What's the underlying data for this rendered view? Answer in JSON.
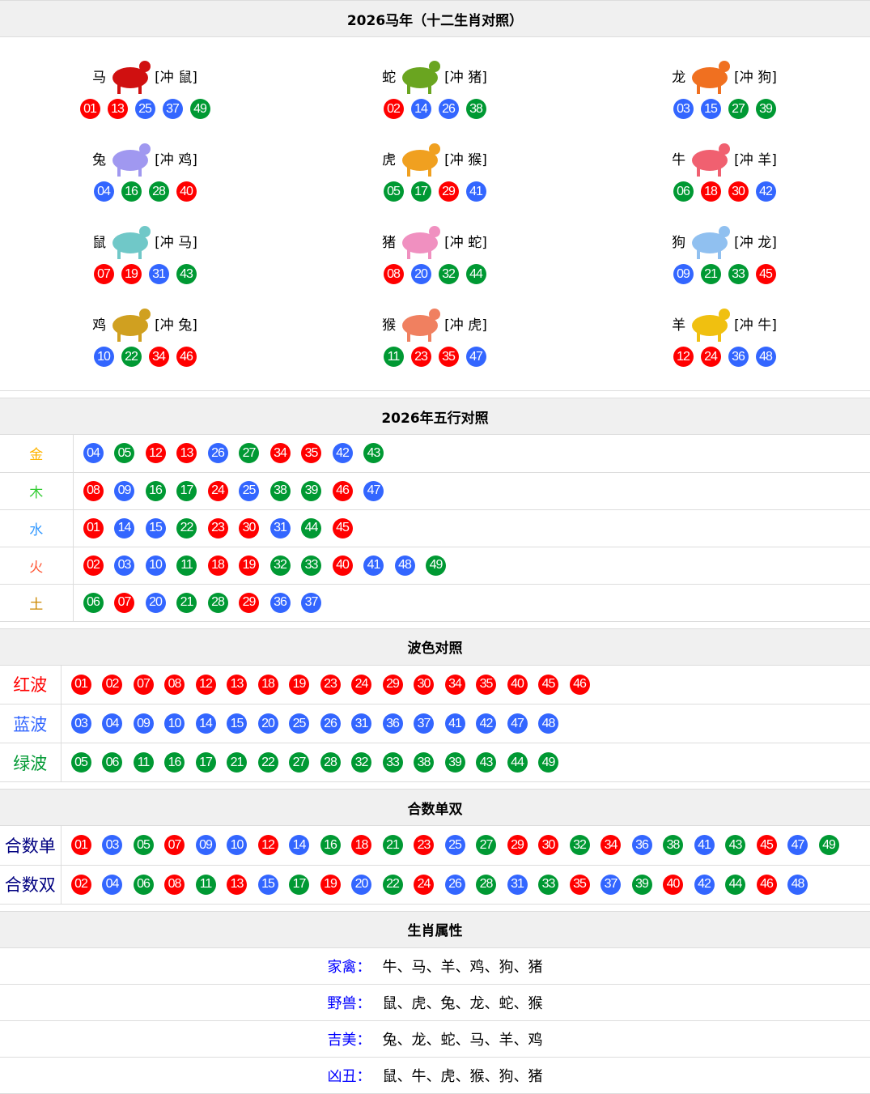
{
  "zodiac": {
    "title": "2026马年（十二生肖对照）",
    "items": [
      {
        "name": "马",
        "clash": "[冲 鼠]",
        "color": "#d01010",
        "nums": [
          "01",
          "13",
          "25",
          "37",
          "49"
        ]
      },
      {
        "name": "蛇",
        "clash": "[冲 猪]",
        "color": "#6aa520",
        "nums": [
          "02",
          "14",
          "26",
          "38"
        ]
      },
      {
        "name": "龙",
        "clash": "[冲 狗]",
        "color": "#f07020",
        "nums": [
          "03",
          "15",
          "27",
          "39"
        ]
      },
      {
        "name": "兔",
        "clash": "[冲 鸡]",
        "color": "#a098f0",
        "nums": [
          "04",
          "16",
          "28",
          "40"
        ]
      },
      {
        "name": "虎",
        "clash": "[冲 猴]",
        "color": "#f0a020",
        "nums": [
          "05",
          "17",
          "29",
          "41"
        ]
      },
      {
        "name": "牛",
        "clash": "[冲 羊]",
        "color": "#f06070",
        "nums": [
          "06",
          "18",
          "30",
          "42"
        ]
      },
      {
        "name": "鼠",
        "clash": "[冲 马]",
        "color": "#70c8c8",
        "nums": [
          "07",
          "19",
          "31",
          "43"
        ]
      },
      {
        "name": "猪",
        "clash": "[冲 蛇]",
        "color": "#f090c0",
        "nums": [
          "08",
          "20",
          "32",
          "44"
        ]
      },
      {
        "name": "狗",
        "clash": "[冲 龙]",
        "color": "#90c0f0",
        "nums": [
          "09",
          "21",
          "33",
          "45"
        ]
      },
      {
        "name": "鸡",
        "clash": "[冲 兔]",
        "color": "#d0a020",
        "nums": [
          "10",
          "22",
          "34",
          "46"
        ]
      },
      {
        "name": "猴",
        "clash": "[冲 虎]",
        "color": "#f08060",
        "nums": [
          "11",
          "23",
          "35",
          "47"
        ]
      },
      {
        "name": "羊",
        "clash": "[冲 牛]",
        "color": "#f0c010",
        "nums": [
          "12",
          "24",
          "36",
          "48"
        ]
      }
    ]
  },
  "wuxing": {
    "title": "2026年五行对照",
    "rows": [
      {
        "label": "金",
        "color": "#ffb400",
        "nums": [
          "04",
          "05",
          "12",
          "13",
          "26",
          "27",
          "34",
          "35",
          "42",
          "43"
        ]
      },
      {
        "label": "木",
        "color": "#33cc33",
        "nums": [
          "08",
          "09",
          "16",
          "17",
          "24",
          "25",
          "38",
          "39",
          "46",
          "47"
        ]
      },
      {
        "label": "水",
        "color": "#3399ff",
        "nums": [
          "01",
          "14",
          "15",
          "22",
          "23",
          "30",
          "31",
          "44",
          "45"
        ]
      },
      {
        "label": "火",
        "color": "#ff5533",
        "nums": [
          "02",
          "03",
          "10",
          "11",
          "18",
          "19",
          "32",
          "33",
          "40",
          "41",
          "48",
          "49"
        ]
      },
      {
        "label": "土",
        "color": "#cc8800",
        "nums": [
          "06",
          "07",
          "20",
          "21",
          "28",
          "29",
          "36",
          "37"
        ]
      }
    ]
  },
  "waves": {
    "title": "波色对照",
    "rows": [
      {
        "label": "红波",
        "color": "#ff0000",
        "nums": [
          "01",
          "02",
          "07",
          "08",
          "12",
          "13",
          "18",
          "19",
          "23",
          "24",
          "29",
          "30",
          "34",
          "35",
          "40",
          "45",
          "46"
        ]
      },
      {
        "label": "蓝波",
        "color": "#3366ff",
        "nums": [
          "03",
          "04",
          "09",
          "10",
          "14",
          "15",
          "20",
          "25",
          "26",
          "31",
          "36",
          "37",
          "41",
          "42",
          "47",
          "48"
        ]
      },
      {
        "label": "绿波",
        "color": "#009933",
        "nums": [
          "05",
          "06",
          "11",
          "16",
          "17",
          "21",
          "22",
          "27",
          "28",
          "32",
          "33",
          "38",
          "39",
          "43",
          "44",
          "49"
        ]
      }
    ]
  },
  "heshu": {
    "title": "合数单双",
    "rows": [
      {
        "label": "合数单",
        "color": "#000080",
        "nums": [
          "01",
          "03",
          "05",
          "07",
          "09",
          "10",
          "12",
          "14",
          "16",
          "18",
          "21",
          "23",
          "25",
          "27",
          "29",
          "30",
          "32",
          "34",
          "36",
          "38",
          "41",
          "43",
          "45",
          "47",
          "49"
        ]
      },
      {
        "label": "合数双",
        "color": "#000080",
        "nums": [
          "02",
          "04",
          "06",
          "08",
          "11",
          "13",
          "15",
          "17",
          "19",
          "20",
          "22",
          "24",
          "26",
          "28",
          "31",
          "33",
          "35",
          "37",
          "39",
          "40",
          "42",
          "44",
          "46",
          "48"
        ]
      }
    ]
  },
  "attributes": {
    "title": "生肖属性",
    "rows": [
      {
        "key": "家禽：",
        "value": "牛、马、羊、鸡、狗、猪"
      },
      {
        "key": "野兽：",
        "value": "鼠、虎、兔、龙、蛇、猴"
      },
      {
        "key": "吉美：",
        "value": "兔、龙、蛇、马、羊、鸡"
      },
      {
        "key": "凶丑：",
        "value": "鼠、牛、虎、猴、狗、猪"
      }
    ]
  }
}
